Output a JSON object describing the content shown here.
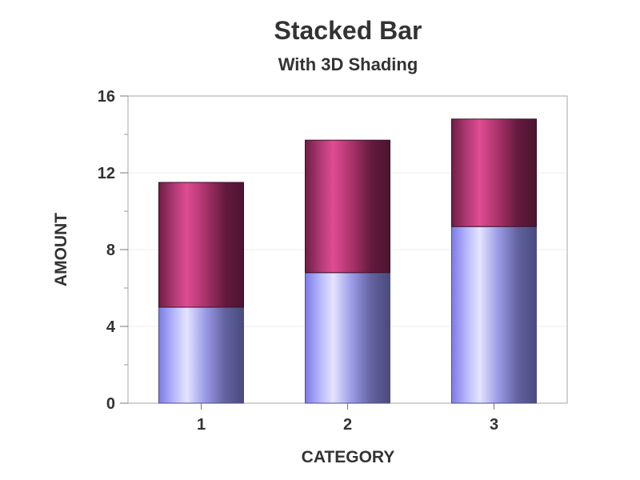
{
  "chart_data": {
    "type": "bar",
    "stacked": true,
    "title": "Stacked Bar",
    "subtitle": "With 3D Shading",
    "xlabel": "CATEGORY",
    "ylabel": "AMOUNT",
    "categories": [
      "1",
      "2",
      "3"
    ],
    "ylim": [
      0,
      16
    ],
    "yticks": [
      0,
      4,
      8,
      12,
      16
    ],
    "series": [
      {
        "values": [
          5.0,
          6.8,
          9.2
        ],
        "color": "#8080e0"
      },
      {
        "values": [
          6.5,
          6.9,
          5.6
        ],
        "color": "#c0407a"
      }
    ],
    "grid": true,
    "legend": "none"
  }
}
